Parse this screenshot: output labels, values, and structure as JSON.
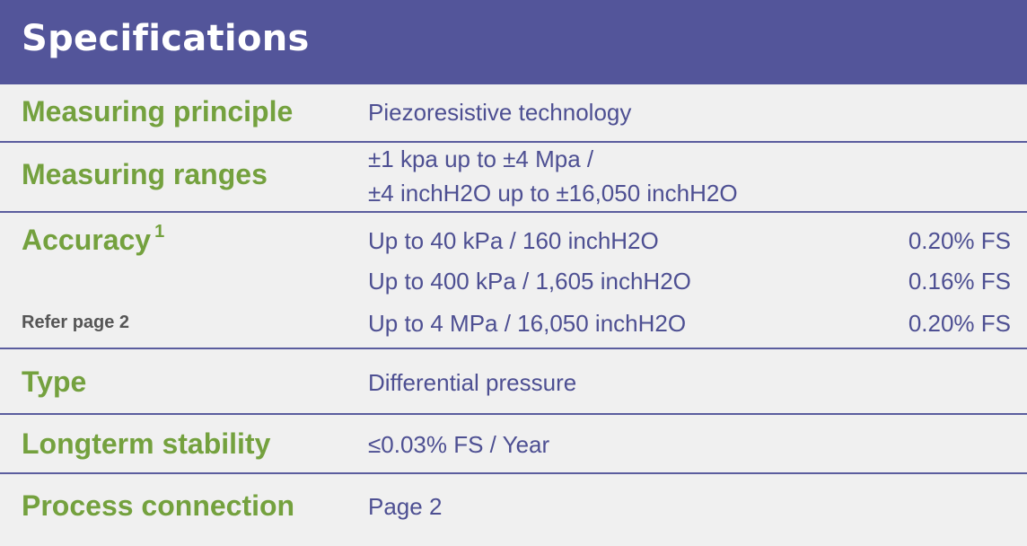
{
  "title": "Specifications",
  "rows": [
    {
      "label": "Measuring principle",
      "value": "Piezoresistive technology"
    },
    {
      "label": "Measuring ranges",
      "lines": [
        "±1 kpa up to ±4 Mpa /",
        "±4 inchH2O up to ±16,050 inchH2O"
      ]
    },
    {
      "label": "Accuracy",
      "footnote_mark": "1",
      "note": "Refer page 2",
      "entries": [
        {
          "range": "Up to 40 kPa / 160 inchH2O",
          "accuracy": "0.20% FS"
        },
        {
          "range": "Up to 400 kPa / 1,605 inchH2O",
          "accuracy": "0.16% FS"
        },
        {
          "range": "Up to 4 MPa / 16,050 inchH2O",
          "accuracy": "0.20% FS"
        }
      ]
    },
    {
      "label": "Type",
      "value": "Differential pressure"
    },
    {
      "label": "Longterm stability",
      "value": "≤0.03% FS / Year"
    },
    {
      "label": "Process connection",
      "value": "Page 2"
    }
  ],
  "colors": {
    "header": "#53559a",
    "label": "#74a13e",
    "value": "#4d4f92",
    "rule": "#5b5d9e",
    "background": "#f0f0f0"
  }
}
